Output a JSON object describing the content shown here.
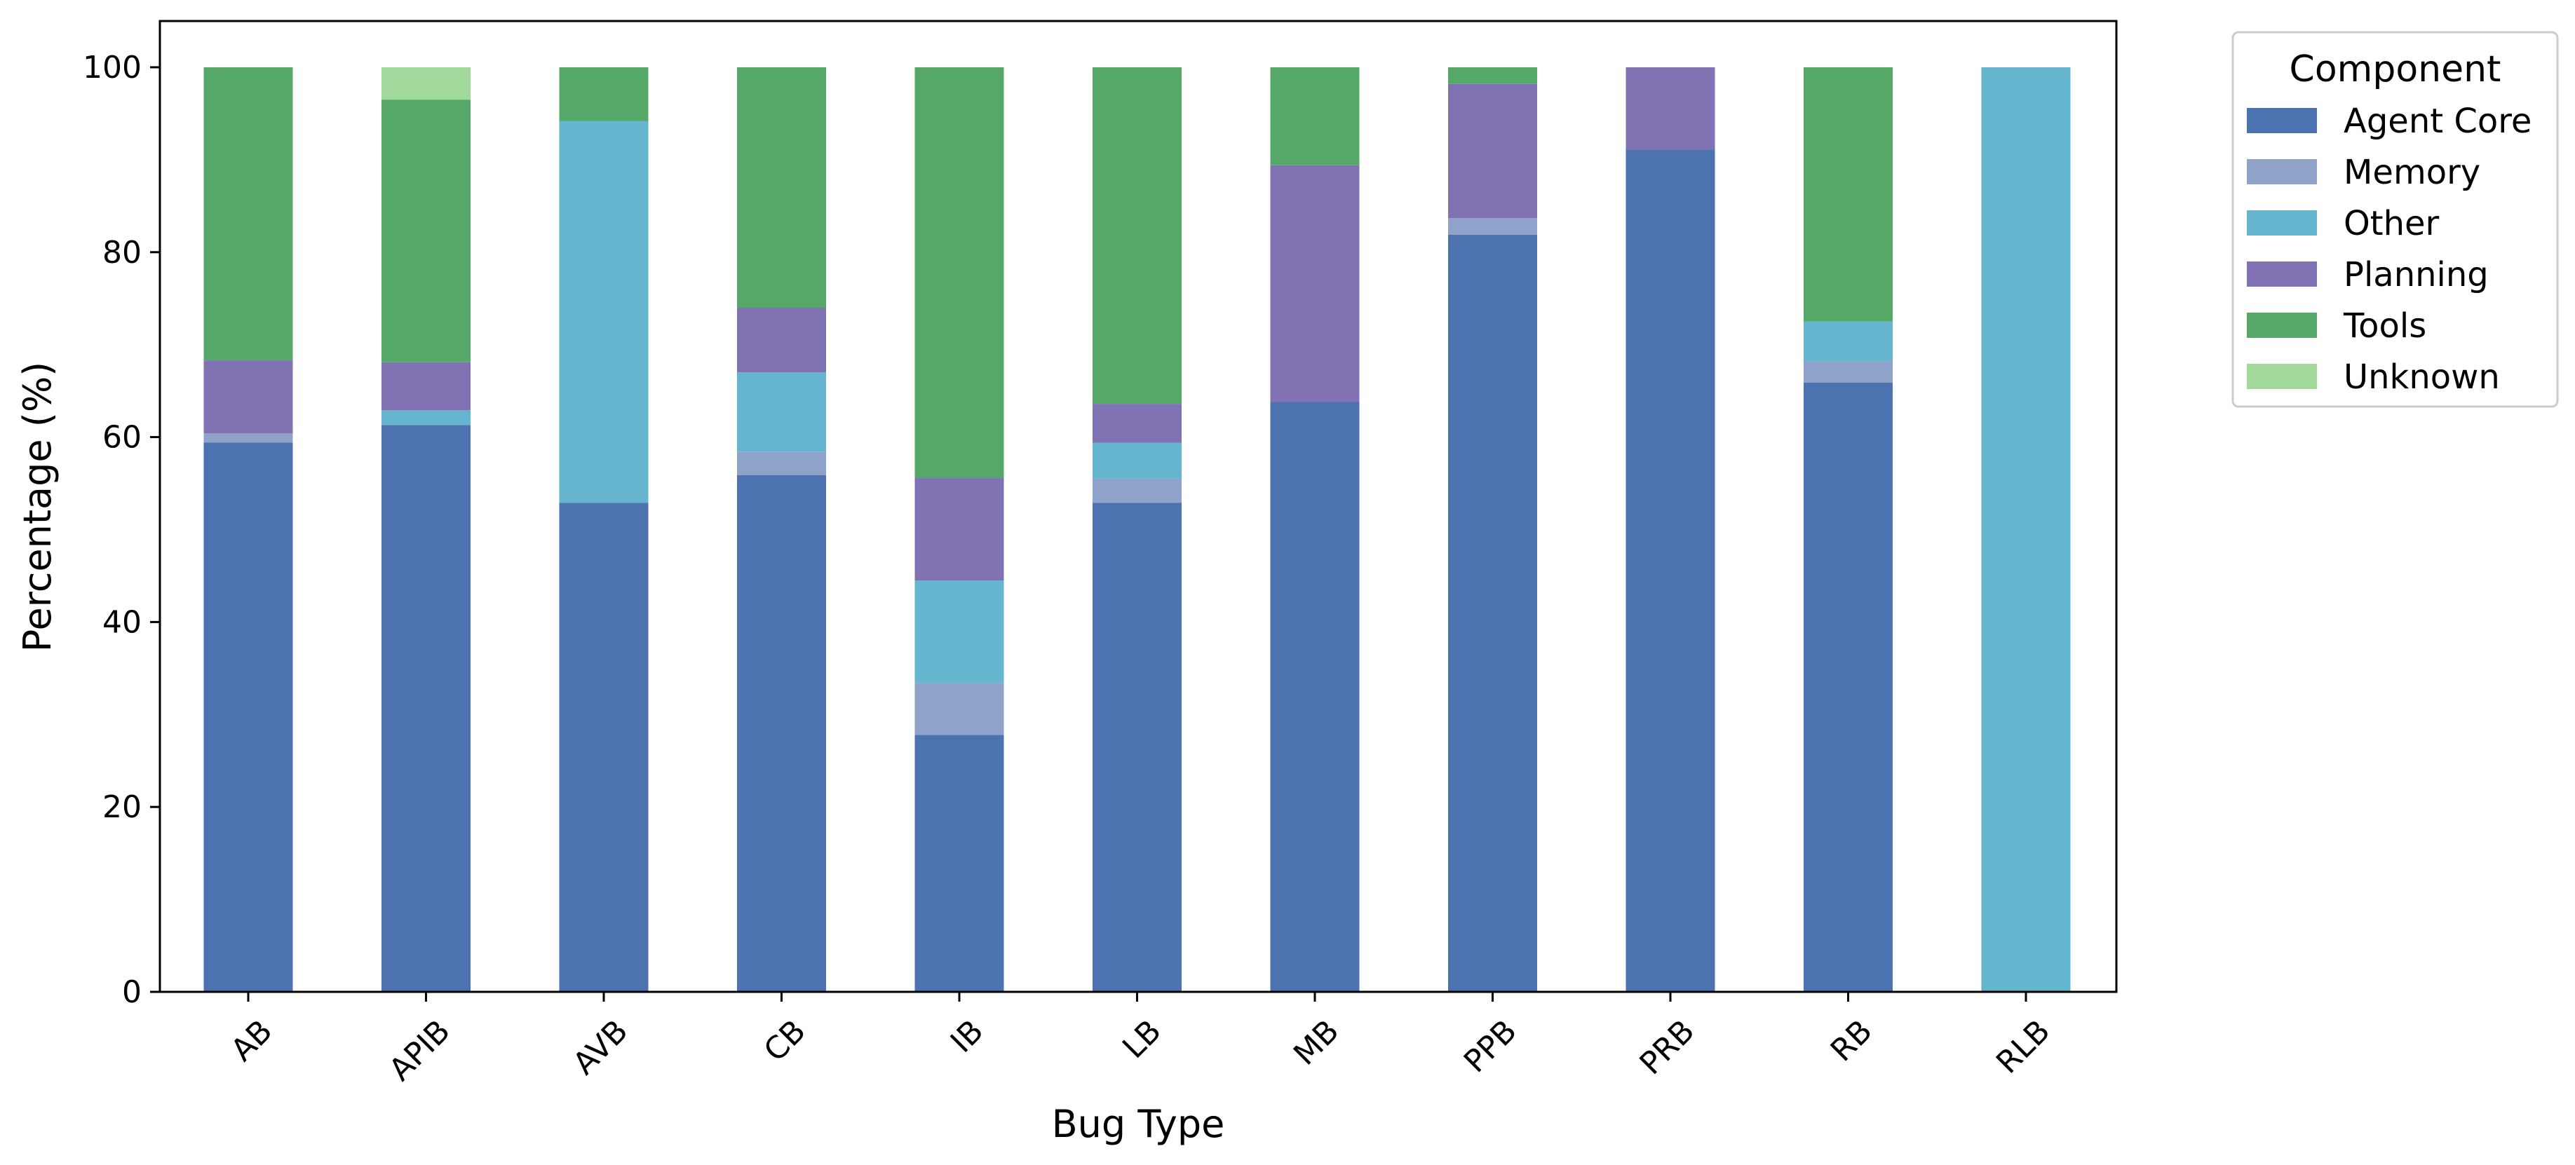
{
  "chart_data": {
    "type": "bar",
    "stacked": true,
    "xlabel": "Bug Type",
    "ylabel": "Percentage (%)",
    "ylim": [
      0,
      105
    ],
    "yticks": [
      0,
      20,
      40,
      60,
      80,
      100
    ],
    "grid": false,
    "legend_title": "Component",
    "legend_position": "outside top-right",
    "categories": [
      "AB",
      "APIB",
      "AVB",
      "CB",
      "IB",
      "LB",
      "MB",
      "PPB",
      "PRB",
      "RB",
      "RLB"
    ],
    "series": [
      {
        "name": "Agent Core",
        "color": "#4c72b0",
        "values": [
          59.4,
          61.3,
          52.9,
          55.9,
          27.8,
          52.9,
          63.8,
          81.9,
          91.1,
          65.9,
          0
        ]
      },
      {
        "name": "Memory",
        "color": "#8fa3ca",
        "values": [
          1.0,
          0,
          0,
          2.5,
          5.6,
          2.6,
          0,
          1.8,
          0,
          2.3,
          0
        ]
      },
      {
        "name": "Other",
        "color": "#64b5cd",
        "values": [
          0,
          1.6,
          41.3,
          8.6,
          11.1,
          3.9,
          0,
          0,
          0,
          4.3,
          100
        ]
      },
      {
        "name": "Planning",
        "color": "#8172b3",
        "values": [
          7.9,
          5.2,
          0,
          7.0,
          11.1,
          4.2,
          25.6,
          14.5,
          8.9,
          0,
          0
        ]
      },
      {
        "name": "Tools",
        "color": "#55a868",
        "values": [
          31.7,
          28.4,
          5.8,
          26.0,
          44.4,
          36.4,
          10.6,
          1.8,
          0,
          27.5,
          0
        ]
      },
      {
        "name": "Unknown",
        "color": "#a1d99b",
        "values": [
          0,
          3.5,
          0,
          0,
          0,
          0,
          0,
          0,
          0,
          0,
          0
        ]
      }
    ]
  }
}
